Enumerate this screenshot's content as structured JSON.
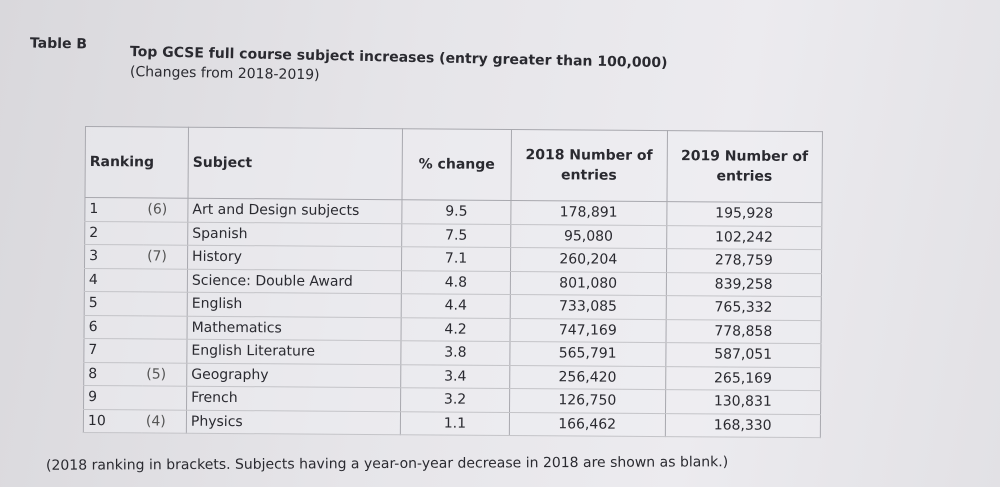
{
  "table_label": "Table B",
  "title": "Top GCSE full course subject increases (entry greater than 100,000)",
  "subtitle": "(Changes from 2018-2019)",
  "headers": {
    "ranking": "Ranking",
    "subject": "Subject",
    "pct_change": "% change",
    "n2018": "2018 Number of entries",
    "n2019": "2019 Number of entries"
  },
  "rows": [
    {
      "rank": "1",
      "prev": "(6)",
      "subject": "Art and Design subjects",
      "pct": "9.5",
      "n2018": "178,891",
      "n2019": "195,928"
    },
    {
      "rank": "2",
      "prev": "",
      "subject": "Spanish",
      "pct": "7.5",
      "n2018": "95,080",
      "n2019": "102,242"
    },
    {
      "rank": "3",
      "prev": "(7)",
      "subject": "History",
      "pct": "7.1",
      "n2018": "260,204",
      "n2019": "278,759"
    },
    {
      "rank": "4",
      "prev": "",
      "subject": "Science: Double Award",
      "pct": "4.8",
      "n2018": "801,080",
      "n2019": "839,258"
    },
    {
      "rank": "5",
      "prev": "",
      "subject": "English",
      "pct": "4.4",
      "n2018": "733,085",
      "n2019": "765,332"
    },
    {
      "rank": "6",
      "prev": "",
      "subject": "Mathematics",
      "pct": "4.2",
      "n2018": "747,169",
      "n2019": "778,858"
    },
    {
      "rank": "7",
      "prev": "",
      "subject": "English Literature",
      "pct": "3.8",
      "n2018": "565,791",
      "n2019": "587,051"
    },
    {
      "rank": "8",
      "prev": "(5)",
      "subject": "Geography",
      "pct": "3.4",
      "n2018": "256,420",
      "n2019": "265,169"
    },
    {
      "rank": "9",
      "prev": "",
      "subject": "French",
      "pct": "3.2",
      "n2018": "126,750",
      "n2019": "130,831"
    },
    {
      "rank": "10",
      "prev": "(4)",
      "subject": "Physics",
      "pct": "1.1",
      "n2018": "166,462",
      "n2019": "168,330"
    }
  ],
  "footnote": "(2018 ranking in brackets. Subjects having a year-on-year decrease in 2018 are shown as blank.)"
}
